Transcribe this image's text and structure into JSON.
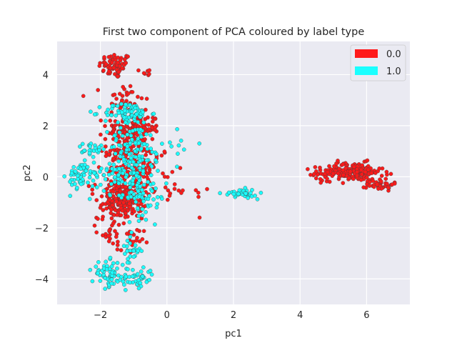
{
  "chart_data": {
    "type": "scatter",
    "title": "First two component of PCA coloured by label type",
    "xlabel": "pc1",
    "ylabel": "pc2",
    "xlim": [
      -3.3,
      7.3
    ],
    "ylim": [
      -5.0,
      5.3
    ],
    "xticks": [
      -2,
      0,
      2,
      4,
      6
    ],
    "yticks": [
      -4,
      -2,
      0,
      2,
      4
    ],
    "xtick_labels": [
      "−2",
      "0",
      "2",
      "4",
      "6"
    ],
    "ytick_labels": [
      "−4",
      "−2",
      "0",
      "2",
      "4"
    ],
    "grid": true,
    "legend_position": "top-right",
    "colors": {
      "background": "#eaeaf2",
      "label0": "#ff1a1a",
      "label1": "#1affff",
      "edge": "#404040"
    },
    "series": [
      {
        "name": "0.0",
        "color": "#ff1a1a",
        "clusters": [
          {
            "cx": -1.55,
            "cy": 4.35,
            "sx": 0.25,
            "sy": 0.25,
            "n": 70
          },
          {
            "cx": -0.6,
            "cy": 4.1,
            "sx": 0.05,
            "sy": 0.1,
            "n": 6
          },
          {
            "cx": -1.3,
            "cy": 3.0,
            "sx": 0.3,
            "sy": 0.35,
            "n": 40
          },
          {
            "cx": -1.0,
            "cy": 1.9,
            "sx": 0.4,
            "sy": 0.3,
            "n": 130
          },
          {
            "cx": -1.2,
            "cy": 1.0,
            "sx": 0.3,
            "sy": 0.4,
            "n": 90
          },
          {
            "cx": -1.3,
            "cy": -0.2,
            "sx": 0.5,
            "sy": 0.4,
            "n": 90
          },
          {
            "cx": -1.3,
            "cy": -1.0,
            "sx": 0.3,
            "sy": 0.3,
            "n": 170
          },
          {
            "cx": -0.5,
            "cy": 0.4,
            "sx": 0.3,
            "sy": 0.4,
            "n": 40
          },
          {
            "cx": -1.7,
            "cy": -2.1,
            "sx": 0.2,
            "sy": 0.3,
            "n": 25
          },
          {
            "cx": -1.1,
            "cy": -2.6,
            "sx": 0.2,
            "sy": 0.3,
            "n": 20
          },
          {
            "cx": 0.3,
            "cy": -0.7,
            "sx": 0.5,
            "sy": 0.3,
            "n": 15
          },
          {
            "cx": 5.6,
            "cy": 0.2,
            "sx": 0.45,
            "sy": 0.18,
            "n": 160
          },
          {
            "cx": 6.4,
            "cy": -0.3,
            "sx": 0.2,
            "sy": 0.12,
            "n": 45
          },
          {
            "cx": 4.8,
            "cy": 0.1,
            "sx": 0.25,
            "sy": 0.15,
            "n": 25
          }
        ]
      },
      {
        "name": "1.0",
        "color": "#1affff",
        "clusters": [
          {
            "cx": -1.2,
            "cy": 2.5,
            "sx": 0.35,
            "sy": 0.2,
            "n": 80
          },
          {
            "cx": -1.0,
            "cy": 1.3,
            "sx": 0.4,
            "sy": 0.4,
            "n": 70
          },
          {
            "cx": -2.3,
            "cy": 1.1,
            "sx": 0.2,
            "sy": 0.12,
            "n": 22
          },
          {
            "cx": -2.6,
            "cy": 0.05,
            "sx": 0.18,
            "sy": 0.25,
            "n": 45
          },
          {
            "cx": -1.3,
            "cy": 0.2,
            "sx": 0.5,
            "sy": 0.45,
            "n": 130
          },
          {
            "cx": -0.6,
            "cy": -0.8,
            "sx": 0.3,
            "sy": 0.4,
            "n": 50
          },
          {
            "cx": -1.1,
            "cy": -2.9,
            "sx": 0.15,
            "sy": 0.3,
            "n": 25
          },
          {
            "cx": -1.75,
            "cy": -3.8,
            "sx": 0.25,
            "sy": 0.25,
            "n": 60
          },
          {
            "cx": -0.9,
            "cy": -4.0,
            "sx": 0.25,
            "sy": 0.25,
            "n": 45
          },
          {
            "cx": 2.2,
            "cy": -0.65,
            "sx": 0.25,
            "sy": 0.08,
            "n": 45
          },
          {
            "cx": 0.4,
            "cy": 1.2,
            "sx": 0.25,
            "sy": 0.3,
            "n": 10
          }
        ]
      }
    ]
  },
  "legend": {
    "items": [
      {
        "label": "0.0",
        "color": "#ff1a1a"
      },
      {
        "label": "1.0",
        "color": "#1affff"
      }
    ]
  }
}
